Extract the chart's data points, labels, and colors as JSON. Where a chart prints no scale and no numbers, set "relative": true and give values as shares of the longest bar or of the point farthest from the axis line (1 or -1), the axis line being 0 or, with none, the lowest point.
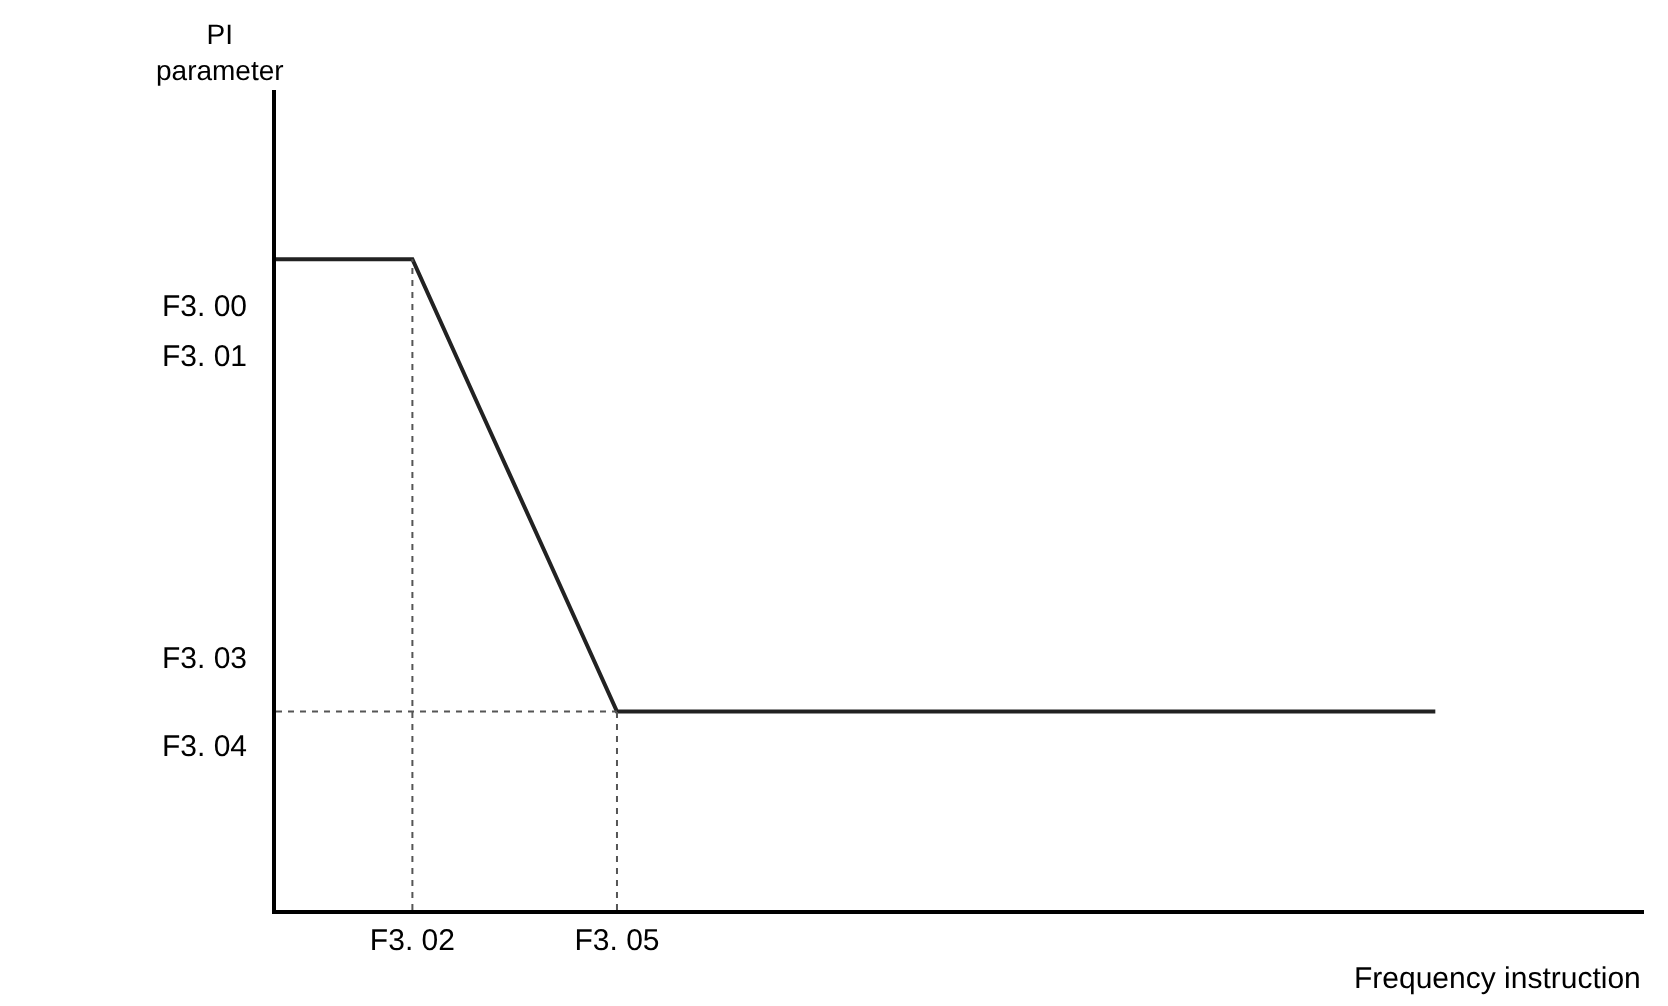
{
  "chart_data": {
    "type": "line",
    "relative": true,
    "xlabel": "Frequency instruction",
    "categories": [
      null,
      null,
      "F3. 02",
      null,
      null,
      "F3. 05",
      null,
      null,
      null,
      null,
      null,
      null,
      null,
      null,
      null,
      null,
      null,
      null
    ],
    "series": [
      {
        "color": "#222222",
        "values": [
          1,
          1,
          1,
          0.768,
          0.537,
          0.305,
          0.305,
          0.305,
          0.305,
          0.305,
          0.305,
          0.305,
          0.305,
          0.305,
          0.305,
          0.305,
          0.305,
          0.305
        ]
      }
    ],
    "annotations": [
      "PI\nparameter",
      "F3. 00",
      "F3. 01",
      "F3. 03",
      "F3. 04"
    ],
    "ref_lines": [
      {
        "axis": "x",
        "value": "F3. 02",
        "line_style": "dotted"
      },
      {
        "axis": "x",
        "value": "F3. 05",
        "line_style": "dotted"
      },
      {
        "axis": "y",
        "value": 0.305,
        "line_style": "dotted"
      }
    ],
    "marker": "none",
    "line_style": "solid"
  }
}
